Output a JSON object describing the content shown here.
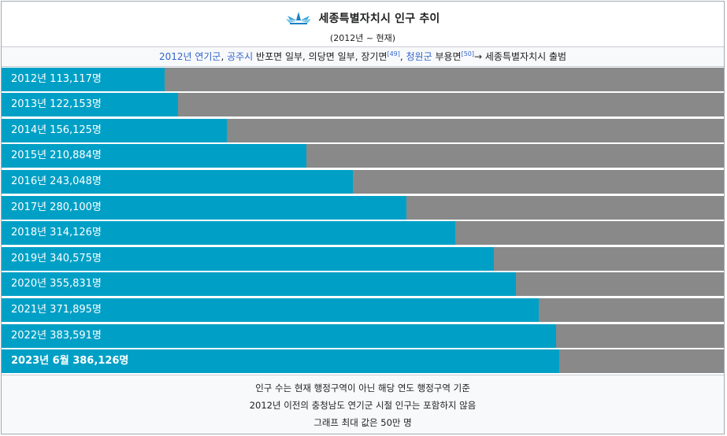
{
  "header": {
    "title": "세종특별자치시 인구 추이",
    "subtitle": "(2012년 ~ 현재)",
    "logo_icon": "sejong-emblem-icon"
  },
  "history": {
    "link1": "2012년 연기군",
    "sep1": ", ",
    "link2": "공주시",
    "text1": " 반포면 일부, 의당면 일부, 장기면",
    "ref1": "[49]",
    "sep2": ", ",
    "link3": "청원군",
    "text2": " 부용면",
    "ref2": "[50]",
    "text3": "→ 세종특별자치시 출범"
  },
  "chart_data": {
    "type": "bar",
    "orientation": "horizontal",
    "xlim": [
      0,
      500000
    ],
    "categories": [
      "2012년",
      "2013년",
      "2014년",
      "2015년",
      "2016년",
      "2017년",
      "2018년",
      "2019년",
      "2020년",
      "2021년",
      "2022년",
      "2023년 6월"
    ],
    "values": [
      113117,
      122153,
      156125,
      210884,
      243048,
      280100,
      314126,
      340575,
      355831,
      371895,
      383591,
      386126
    ],
    "labels": [
      "2012년 113,117명",
      "2013년 122,153명",
      "2014년 156,125명",
      "2015년 210,884명",
      "2016년 243,048명",
      "2017년 280,100명",
      "2018년 314,126명",
      "2019년 340,575명",
      "2020년 355,831명",
      "2021년 371,895명",
      "2022년 383,591명",
      "2023년 6월 386,126명"
    ],
    "emphasized_index": 11,
    "colors": {
      "fill": "#00a0c6",
      "track": "#898989"
    }
  },
  "notes": [
    "인구 수는 현재 행정구역이 아닌 해당 연도 행정구역 기준",
    "2012년 이전의 충청남도 연기군 시절 인구는 포함하지 않음",
    "그래프 최대 값은 50만 명"
  ]
}
